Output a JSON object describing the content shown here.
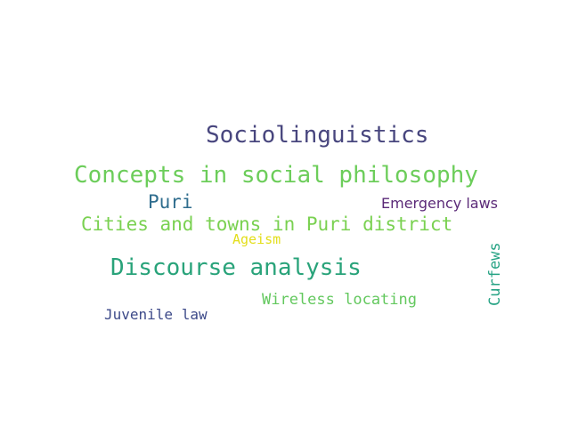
{
  "words": {
    "sociolinguistics": {
      "text": "Sociolinguistics",
      "color": "#48467e"
    },
    "concepts": {
      "text": "Concepts in social philosophy",
      "color": "#6ccd5a"
    },
    "puri": {
      "text": "Puri",
      "color": "#2f6d8e"
    },
    "emergency": {
      "text": "Emergency laws",
      "color": "#5b2a78"
    },
    "cities": {
      "text": "Cities and towns in Puri district",
      "color": "#7ad151"
    },
    "ageism": {
      "text": "Ageism",
      "color": "#e3de1a"
    },
    "discourse": {
      "text": "Discourse analysis",
      "color": "#29a37a"
    },
    "curfews": {
      "text": "Curfews",
      "color": "#26a384"
    },
    "wireless": {
      "text": "Wireless locating",
      "color": "#63c85e"
    },
    "juvenile": {
      "text": "Juvenile law",
      "color": "#3d4a89"
    }
  }
}
